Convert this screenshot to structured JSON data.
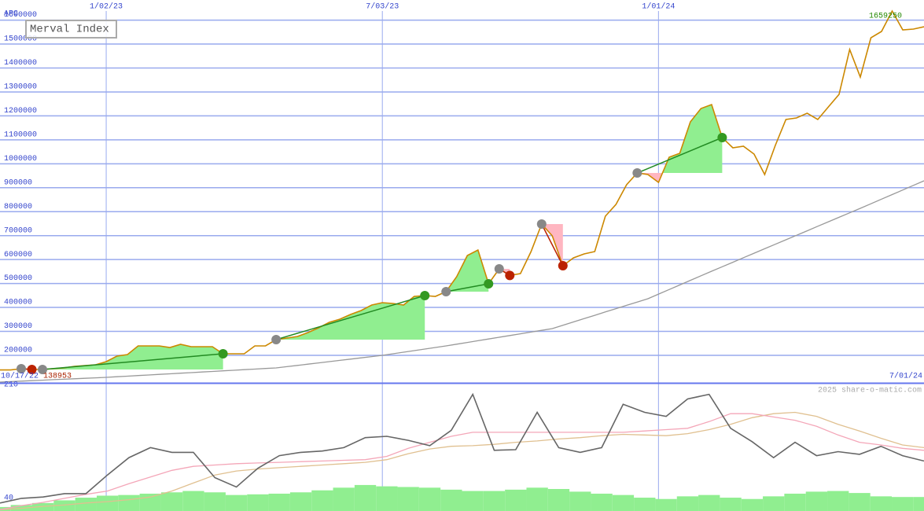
{
  "chart_data": [
    {
      "type": "line",
      "title": "Merval Index",
      "corner_label": "APC",
      "start_label": "10/17/22",
      "end_label": "7/01/24",
      "min_value": 138953,
      "min_color": "#aa2200",
      "max_value": 1659250,
      "max_color": "#228800",
      "categories": [
        null,
        null,
        null,
        null,
        null,
        null,
        null,
        null,
        null,
        null,
        "1/02/23",
        null,
        null,
        null,
        null,
        null,
        null,
        null,
        null,
        null,
        null,
        null,
        null,
        null,
        null,
        null,
        null,
        null,
        null,
        null,
        null,
        null,
        null,
        null,
        null,
        null,
        "7/03/23",
        null,
        null,
        null,
        null,
        null,
        null,
        null,
        null,
        null,
        null,
        null,
        null,
        null,
        null,
        null,
        null,
        null,
        null,
        null,
        null,
        null,
        null,
        null,
        null,
        null,
        "1/01/24",
        null,
        null,
        null,
        null,
        null,
        null,
        null,
        null,
        null,
        null,
        null,
        null,
        null,
        null,
        null,
        null,
        null,
        null,
        null,
        null,
        null,
        null,
        null,
        null,
        null
      ],
      "series": [
        {
          "color": "#cc8800",
          "values": [
            138953,
            138953,
            144200,
            140900,
            140900,
            144200,
            147500,
            154000,
            157300,
            160600,
            173700,
            196700,
            203300,
            239400,
            239400,
            239400,
            232800,
            246000,
            236100,
            236100,
            236100,
            206600,
            206600,
            206600,
            239400,
            239400,
            265700,
            272200,
            278800,
            295200,
            314900,
            337900,
            351000,
            370700,
            387100,
            410100,
            420000,
            416700,
            410100,
            446200,
            449500,
            446200,
            465900,
            528300,
            616900,
            640000,
            498800,
            561100,
            533700,
            541400,
            633400,
            748300,
            699000,
            574300,
            607100,
            623500,
            633400,
            781100,
            830300,
            912400,
            961600,
            955100,
            922200,
            1027300,
            1043700,
            1175000,
            1230900,
            1247300,
            1109400,
            1066700,
            1073300,
            1040400,
            955100,
            1076600,
            1184900,
            1191500,
            1211200,
            1184900,
            1237400,
            1290000,
            1477100,
            1362200,
            1526300,
            1552600,
            1637900,
            1559200,
            1562500,
            1572300
          ]
        },
        {
          "color": "#999999",
          "values": [
            88400,
            90400,
            92300,
            94300,
            96300,
            98300,
            100200,
            102200,
            104200,
            106100,
            108100,
            110600,
            113000,
            115500,
            117900,
            120400,
            122900,
            125300,
            127800,
            130300,
            132700,
            135200,
            137600,
            140100,
            142600,
            145000,
            147500,
            152800,
            158000,
            163300,
            168500,
            173800,
            179000,
            184300,
            189500,
            194800,
            200000,
            206600,
            213100,
            219700,
            226300,
            232800,
            239400,
            246600,
            253800,
            261100,
            268300,
            275500,
            282700,
            289900,
            297200,
            304400,
            311600,
            325500,
            339300,
            353200,
            367100,
            381000,
            394800,
            408700,
            422500,
            436400,
            455600,
            474700,
            493900,
            513000,
            532200,
            551300,
            570100,
            588800,
            607600,
            626300,
            645100,
            663900,
            682600,
            701400,
            720100,
            738900,
            757700,
            776400,
            795200,
            813900,
            833100,
            852200,
            871400,
            890500,
            909700,
            928800
          ]
        }
      ],
      "entries": {
        "color": "#888888",
        "values": [
          null,
          null,
          144200,
          null,
          140900,
          null,
          null,
          null,
          null,
          null,
          null,
          null,
          null,
          null,
          null,
          null,
          null,
          null,
          null,
          null,
          null,
          null,
          null,
          null,
          null,
          null,
          265700,
          null,
          null,
          null,
          null,
          null,
          null,
          null,
          null,
          null,
          null,
          null,
          null,
          null,
          null,
          null,
          465900,
          null,
          null,
          null,
          null,
          561100,
          null,
          null,
          null,
          748300,
          null,
          null,
          null,
          null,
          null,
          null,
          null,
          null,
          961600,
          null,
          null,
          null,
          null,
          null,
          null,
          null,
          null,
          null,
          null,
          null,
          null,
          null,
          null,
          null,
          null,
          null,
          null,
          null,
          null,
          null,
          null,
          null,
          null,
          null,
          null,
          null
        ]
      },
      "exits": {
        "gain_color": "#339922",
        "loss_color": "#bb2200",
        "values": [
          null,
          null,
          null,
          140900,
          null,
          null,
          null,
          null,
          null,
          null,
          null,
          null,
          null,
          null,
          null,
          null,
          null,
          null,
          null,
          null,
          null,
          206600,
          null,
          null,
          null,
          null,
          null,
          null,
          null,
          null,
          null,
          null,
          null,
          null,
          null,
          null,
          null,
          null,
          null,
          null,
          449500,
          null,
          null,
          null,
          null,
          null,
          498800,
          null,
          533700,
          null,
          null,
          null,
          null,
          574300,
          null,
          null,
          null,
          null,
          null,
          null,
          null,
          null,
          null,
          null,
          null,
          null,
          null,
          null,
          1109400,
          null,
          null,
          null,
          null,
          null,
          null,
          null,
          null,
          null,
          null,
          null,
          null,
          null,
          null,
          null,
          null,
          null,
          null,
          null
        ]
      },
      "gain_fill": "#90ee90",
      "loss_fill": "#ffb6c1",
      "trade_line_color": "#228b22",
      "ylim": [
        85000,
        1684000
      ],
      "yticks": [
        200000,
        300000,
        400000,
        500000,
        600000,
        700000,
        800000,
        900000,
        1000000,
        1100000,
        1200000,
        1300000,
        1400000,
        1500000,
        1600000
      ],
      "grid": true
    },
    {
      "type": "line",
      "watermark": "2025 share-o-matic.com",
      "series": [
        {
          "color": "#666666",
          "values": [
            40,
            47,
            49,
            54,
            54,
            82,
            108,
            123,
            116,
            116,
            78,
            64,
            92,
            111,
            116,
            118,
            123,
            138,
            140,
            134,
            126,
            149,
            203,
            119,
            120,
            176,
            123,
            116,
            123,
            188,
            176,
            170,
            196,
            203,
            152,
            132,
            108,
            131,
            111,
            117,
            113,
            125,
            111,
            103
          ]
        },
        {
          "color": "#f4a6b8",
          "values": [
            30,
            36,
            41,
            47,
            53,
            58,
            69,
            79,
            89,
            95,
            97,
            99,
            100,
            101,
            102,
            103,
            104,
            105,
            110,
            122,
            131,
            140,
            146,
            146,
            146,
            146,
            146,
            146,
            146,
            146,
            148,
            150,
            152,
            162,
            174,
            174,
            169,
            164,
            155,
            142,
            131,
            127,
            122,
            119
          ]
        },
        {
          "color": "#e0c090",
          "values": [
            30,
            32,
            35,
            37,
            40,
            42,
            45,
            49,
            58,
            70,
            82,
            88,
            91,
            93,
            95,
            97,
            99,
            101,
            105,
            114,
            121,
            125,
            126,
            128,
            131,
            133,
            136,
            138,
            141,
            143,
            142,
            141,
            144,
            150,
            158,
            168,
            174,
            176,
            170,
            158,
            148,
            137,
            127,
            123
          ]
        }
      ],
      "bars": {
        "color": "#90ee90",
        "values": [
          34,
          37,
          40,
          44,
          48,
          51,
          52,
          54,
          56,
          58,
          56,
          52,
          53,
          54,
          56,
          59,
          63,
          67,
          65,
          64,
          63,
          60,
          58,
          58,
          60,
          63,
          61,
          57,
          54,
          52,
          48,
          46,
          50,
          52,
          48,
          46,
          50,
          54,
          57,
          58,
          55,
          50,
          49,
          49
        ]
      },
      "ylim": [
        28,
        219
      ],
      "yticks": [
        40,
        210
      ],
      "grid": false
    }
  ]
}
